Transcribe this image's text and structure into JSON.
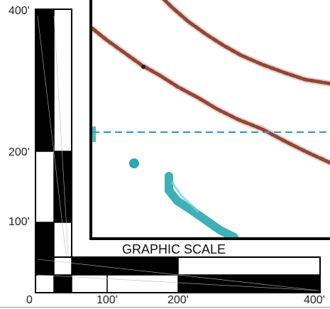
{
  "scale": {
    "title": "GRAPHIC SCALE",
    "horizontal_labels": [
      "0",
      "100'",
      "200'",
      "400'"
    ],
    "vertical_labels": [
      "400'",
      "200'",
      "100'"
    ]
  },
  "map": {
    "line_color_boundary": "#8b4a32",
    "line_color_water": "#2aa7b0",
    "dashed_line_color": "#2f8fd6"
  }
}
